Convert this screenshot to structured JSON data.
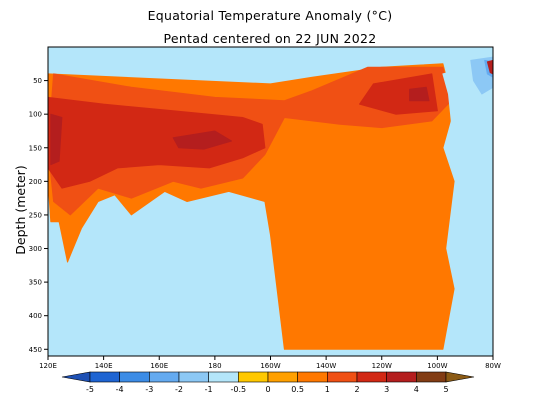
{
  "title": "Equatorial Temperature Anomaly (°C)",
  "subtitle": "Pentad centered on 22 JUN 2022",
  "chart_data": {
    "type": "heatmap",
    "title": "Equatorial Temperature Anomaly (°C)",
    "subtitle": "Pentad centered on 22 JUN 2022",
    "xlabel": "",
    "ylabel": "Depth (meter)",
    "x_range_lon_east": [
      120,
      280
    ],
    "x_ticks": [
      {
        "lon": 120,
        "label": "120E"
      },
      {
        "lon": 140,
        "label": "140E"
      },
      {
        "lon": 160,
        "label": "160E"
      },
      {
        "lon": 180,
        "label": "180"
      },
      {
        "lon": 200,
        "label": "160W"
      },
      {
        "lon": 220,
        "label": "140W"
      },
      {
        "lon": 240,
        "label": "120W"
      },
      {
        "lon": 260,
        "label": "100W"
      },
      {
        "lon": 280,
        "label": "80W"
      }
    ],
    "y_range_depth_m": [
      0,
      460
    ],
    "y_ticks": [
      50,
      100,
      150,
      200,
      250,
      300,
      350,
      400,
      450
    ],
    "colorbar": {
      "labels": [
        "-5",
        "-4",
        "-3",
        "-2",
        "-1",
        "-0.5",
        "0",
        "0.5",
        "1",
        "2",
        "3",
        "4",
        "5"
      ],
      "colors": [
        "#1e64d2",
        "#3c8ce6",
        "#64aaf0",
        "#8cc8f5",
        "#b4e6fa",
        "#ffc800",
        "#ffa000",
        "#ff7800",
        "#f05014",
        "#d22814",
        "#b41e1e",
        "#823c14"
      ],
      "extend_low_color": "#1e50b4",
      "extend_high_color": "#8b5a14"
    },
    "features": [
      {
        "name": "warm thermocline band",
        "lon_range": [
          120,
          200
        ],
        "depth_range": [
          60,
          220
        ],
        "anomaly": 2
      },
      {
        "name": "warm core west",
        "lon": 122,
        "depth": 140,
        "anomaly": 3
      },
      {
        "name": "warm core central",
        "lon": 170,
        "depth": 145,
        "anomaly": 3
      },
      {
        "name": "warm core east",
        "lon": 253,
        "depth": 70,
        "anomaly": 3
      },
      {
        "name": "cold surface layer",
        "lon_range": [
          150,
          250
        ],
        "depth_range": [
          0,
          60
        ],
        "anomaly": -1
      },
      {
        "name": "cold far east surface",
        "lon": 277,
        "depth": 30,
        "anomaly": -3
      },
      {
        "name": "warm eastern surface",
        "lon": 280,
        "depth": 30,
        "anomaly": 3
      },
      {
        "name": "cool deep west",
        "lon_range": [
          125,
          200
        ],
        "depth_range": [
          230,
          450
        ],
        "anomaly": -0.5
      },
      {
        "name": "warm deep east",
        "lon_range": [
          200,
          265
        ],
        "depth_range": [
          200,
          450
        ],
        "anomaly": 0.5
      }
    ]
  }
}
